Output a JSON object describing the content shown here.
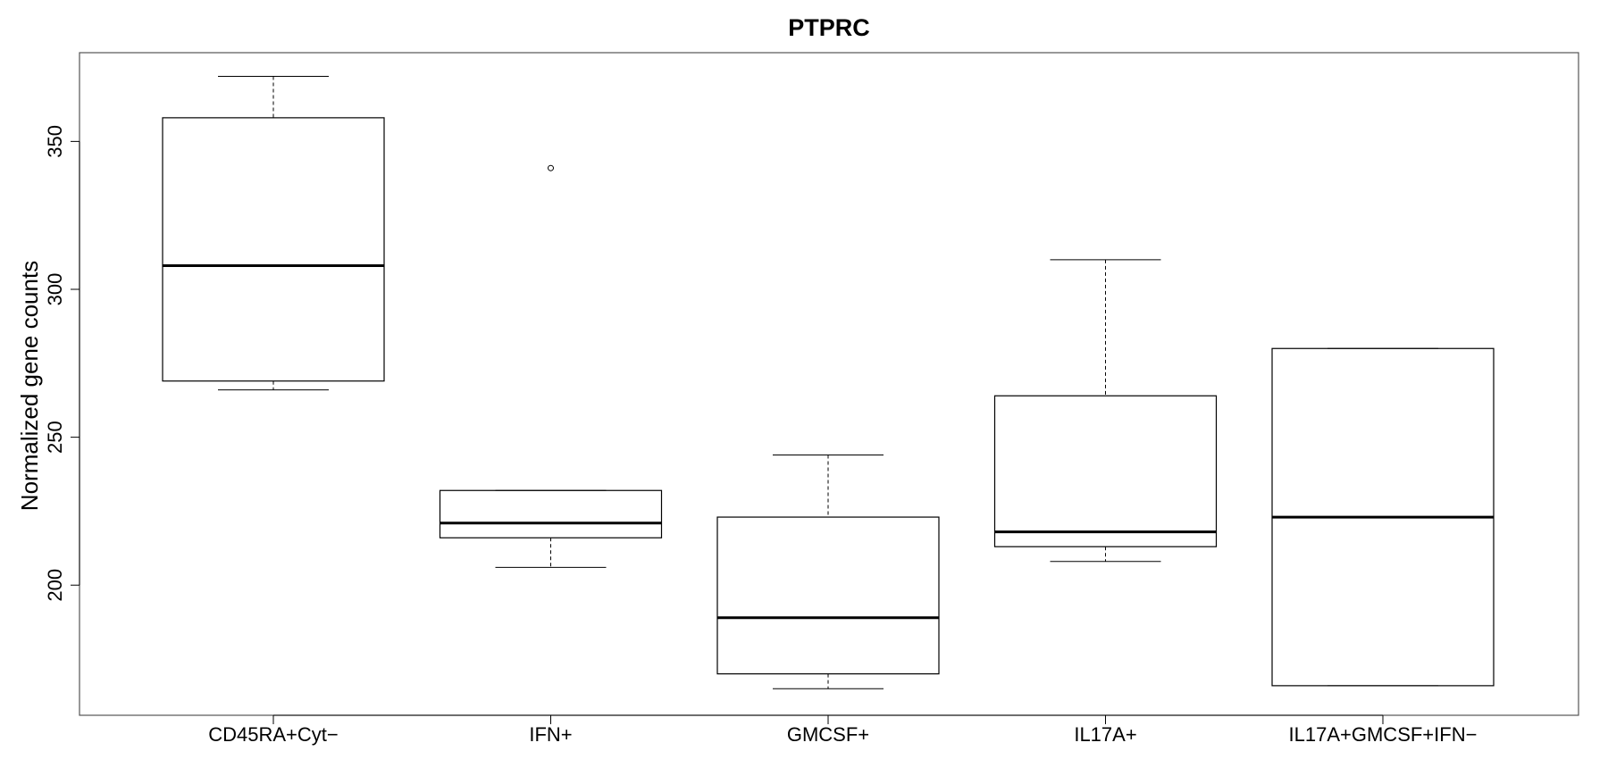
{
  "chart_data": {
    "type": "boxplot",
    "title": "PTPRC",
    "xlabel": "",
    "ylabel": "Normalized gene counts",
    "ylim": [
      156,
      380
    ],
    "yticks": [
      200,
      250,
      300,
      350
    ],
    "grid": false,
    "categories": [
      "CD45RA+Cyt−",
      "IFN+",
      "GMCSF+",
      "IL17A+",
      "IL17A+GMCSF+IFN−"
    ],
    "boxes": [
      {
        "whisker_low": 266,
        "q1": 269,
        "median": 308,
        "q3": 358,
        "whisker_high": 372,
        "outliers": []
      },
      {
        "whisker_low": 206,
        "q1": 216,
        "median": 221,
        "q3": 232,
        "whisker_high": 232,
        "outliers": [
          341
        ]
      },
      {
        "whisker_low": 165,
        "q1": 170,
        "median": 189,
        "q3": 223,
        "whisker_high": 244,
        "outliers": []
      },
      {
        "whisker_low": 208,
        "q1": 213,
        "median": 218,
        "q3": 264,
        "whisker_high": 310,
        "outliers": []
      },
      {
        "whisker_low": 166,
        "q1": 166,
        "median": 223,
        "q3": 280,
        "whisker_high": 280,
        "outliers": []
      }
    ]
  }
}
